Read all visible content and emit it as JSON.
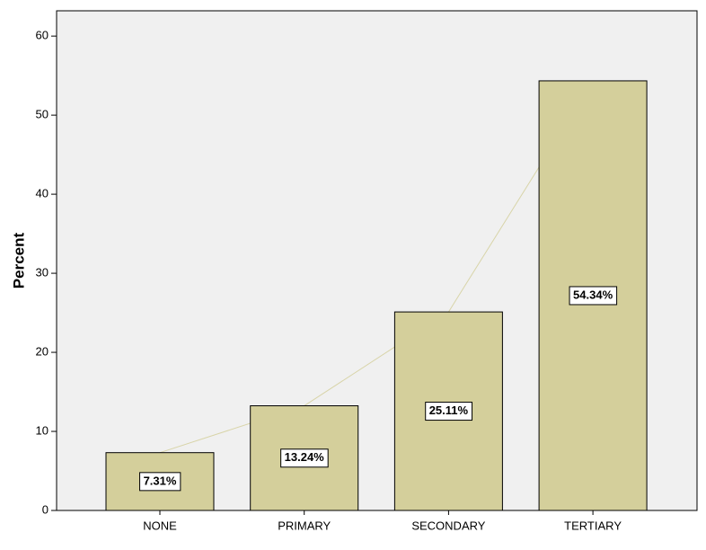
{
  "chart_data": {
    "type": "bar",
    "y_label": "Percent",
    "categories": [
      "NONE",
      "PRIMARY",
      "SECONDARY",
      "TERTIARY"
    ],
    "values": [
      7.31,
      13.24,
      25.11,
      54.34
    ],
    "value_labels": [
      "7.31%",
      "13.24%",
      "25.11%",
      "54.34%"
    ],
    "color": "#d4cf9b",
    "ylim": [
      0,
      63.2
    ],
    "yticks": [
      0,
      10,
      20,
      30,
      40,
      50,
      60
    ]
  }
}
